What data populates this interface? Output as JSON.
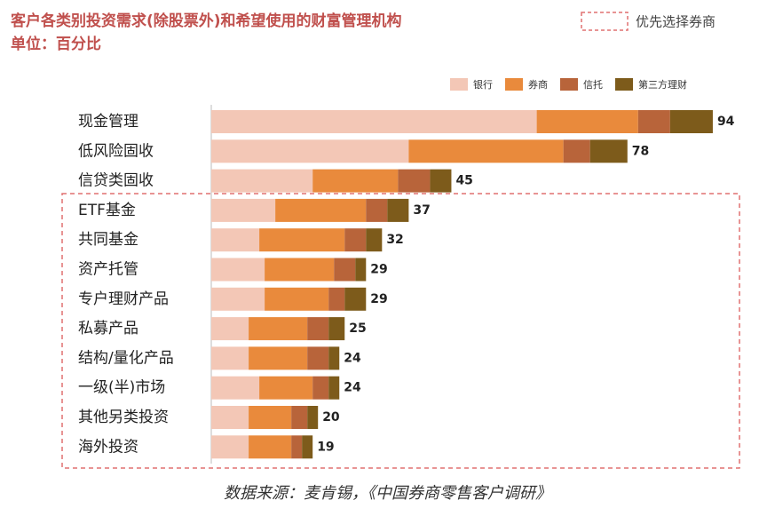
{
  "chart_data": {
    "type": "stacked-bar-horizontal",
    "title": "客户各类别投资需求(除股票外)和希望使用的财富管理机构",
    "subtitle": "单位：百分比",
    "highlight_label": "优先选择券商",
    "source": "数据来源：麦肯锡，《中国券商零售客户调研》",
    "categories": [
      "现金管理",
      "低风险固收",
      "信贷类固收",
      "ETF基金",
      "共同基金",
      "资产托管",
      "专户理财产品",
      "私募产品",
      "结构/量化产品",
      "一级(半)市场",
      "其他另类投资",
      "海外投资"
    ],
    "series": [
      {
        "name": "银行",
        "color": "#f3c7b6",
        "values": [
          61,
          37,
          19,
          12,
          9,
          10,
          10,
          7,
          7,
          9,
          7,
          7
        ]
      },
      {
        "name": "券商",
        "color": "#e98a3c",
        "values": [
          19,
          29,
          16,
          17,
          16,
          13,
          12,
          11,
          11,
          10,
          8,
          8
        ]
      },
      {
        "name": "信托",
        "color": "#b8643a",
        "values": [
          6,
          5,
          6,
          4,
          4,
          4,
          3,
          4,
          4,
          3,
          3,
          2
        ]
      },
      {
        "name": "第三方理财",
        "color": "#7d5b1b",
        "values": [
          8,
          7,
          4,
          4,
          3,
          2,
          4,
          3,
          2,
          2,
          2,
          2
        ]
      }
    ],
    "totals": [
      94,
      78,
      45,
      37,
      32,
      29,
      29,
      25,
      24,
      24,
      20,
      19
    ]
  }
}
